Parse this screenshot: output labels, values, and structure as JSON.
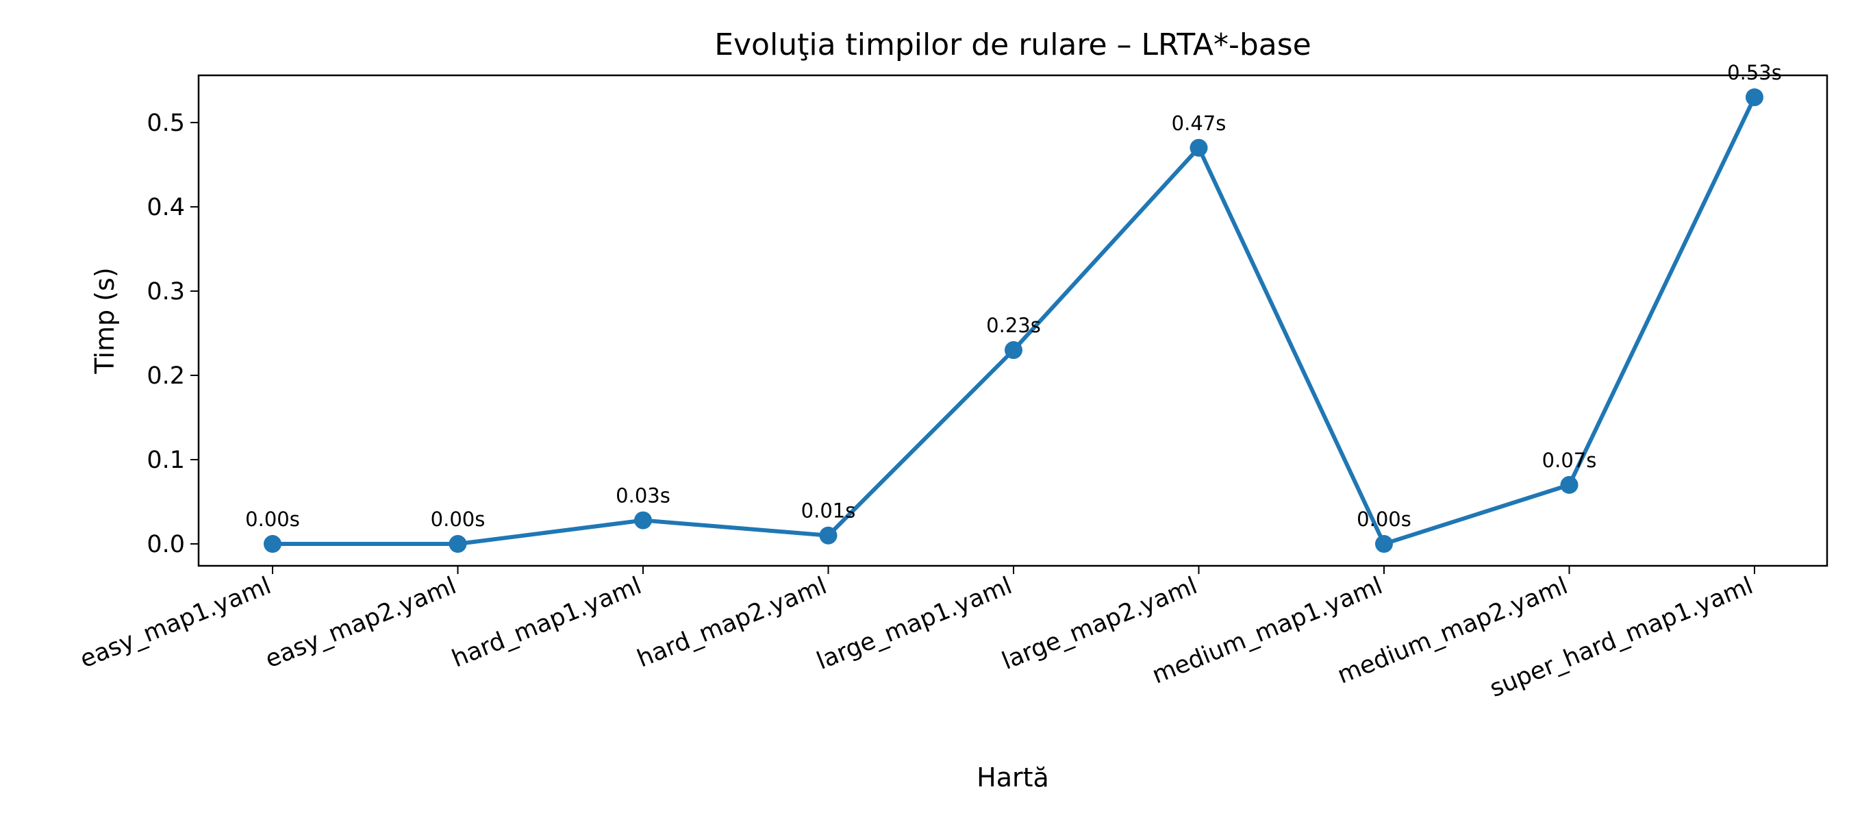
{
  "chart_data": {
    "type": "line",
    "title": "Evoluţia timpilor de rulare – LRTA*-base",
    "xlabel": "Hartă",
    "ylabel": "Timp (s)",
    "categories": [
      "easy_map1.yaml",
      "easy_map2.yaml",
      "hard_map1.yaml",
      "hard_map2.yaml",
      "large_map1.yaml",
      "large_map2.yaml",
      "medium_map1.yaml",
      "medium_map2.yaml",
      "super_hard_map1.yaml"
    ],
    "series": [
      {
        "name": "",
        "values": [
          0.0,
          0.0,
          0.028,
          0.01,
          0.23,
          0.47,
          0.0,
          0.07,
          0.53
        ],
        "labels": [
          "0.00s",
          "0.00s",
          "0.03s",
          "0.01s",
          "0.23s",
          "0.47s",
          "0.00s",
          "0.07s",
          "0.53s"
        ]
      }
    ],
    "ylim": [
      -0.026,
      0.556
    ],
    "yticks": [
      0.0,
      0.1,
      0.2,
      0.3,
      0.4,
      0.5
    ],
    "ytick_labels": [
      "0.0",
      "0.1",
      "0.2",
      "0.3",
      "0.4",
      "0.5"
    ],
    "grid": false,
    "color": "#1f77b4"
  }
}
